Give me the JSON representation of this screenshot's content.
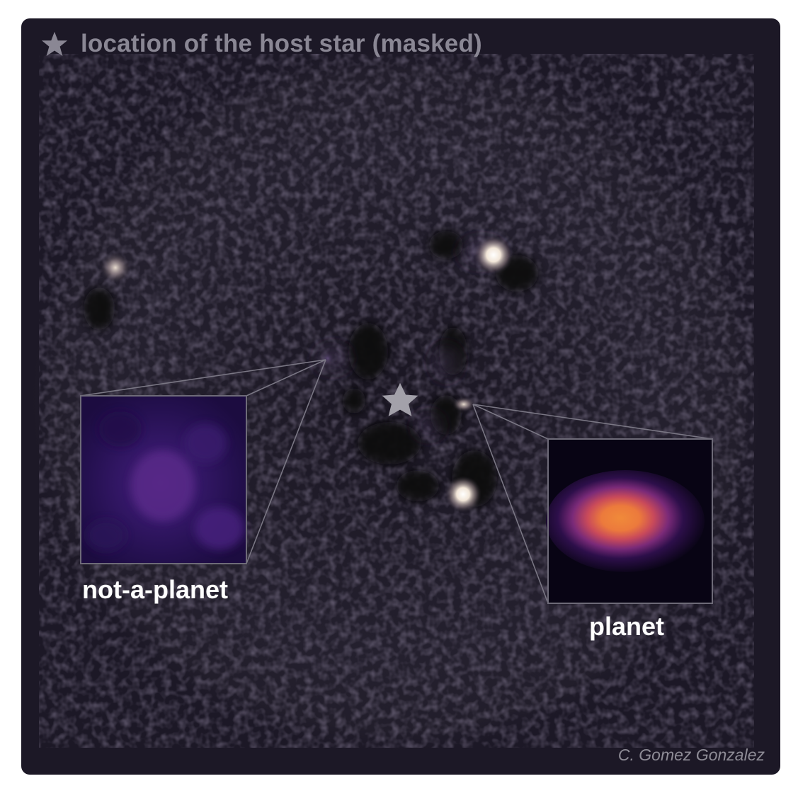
{
  "legend": {
    "icon": "star-icon",
    "text": "location of the host star (masked)"
  },
  "insets": {
    "left_label": "not-a-planet",
    "right_label": "planet"
  },
  "credit": "C. Gomez Gonzalez",
  "colors": {
    "background": "#1c1826",
    "legend_text": "#8a8794",
    "label_text": "#ffffff",
    "inset_border": "#6e6b78",
    "planet_core": "#f0823a",
    "planet_halo": "#5a1f7a",
    "noise_inset": "#3a1a6a"
  }
}
